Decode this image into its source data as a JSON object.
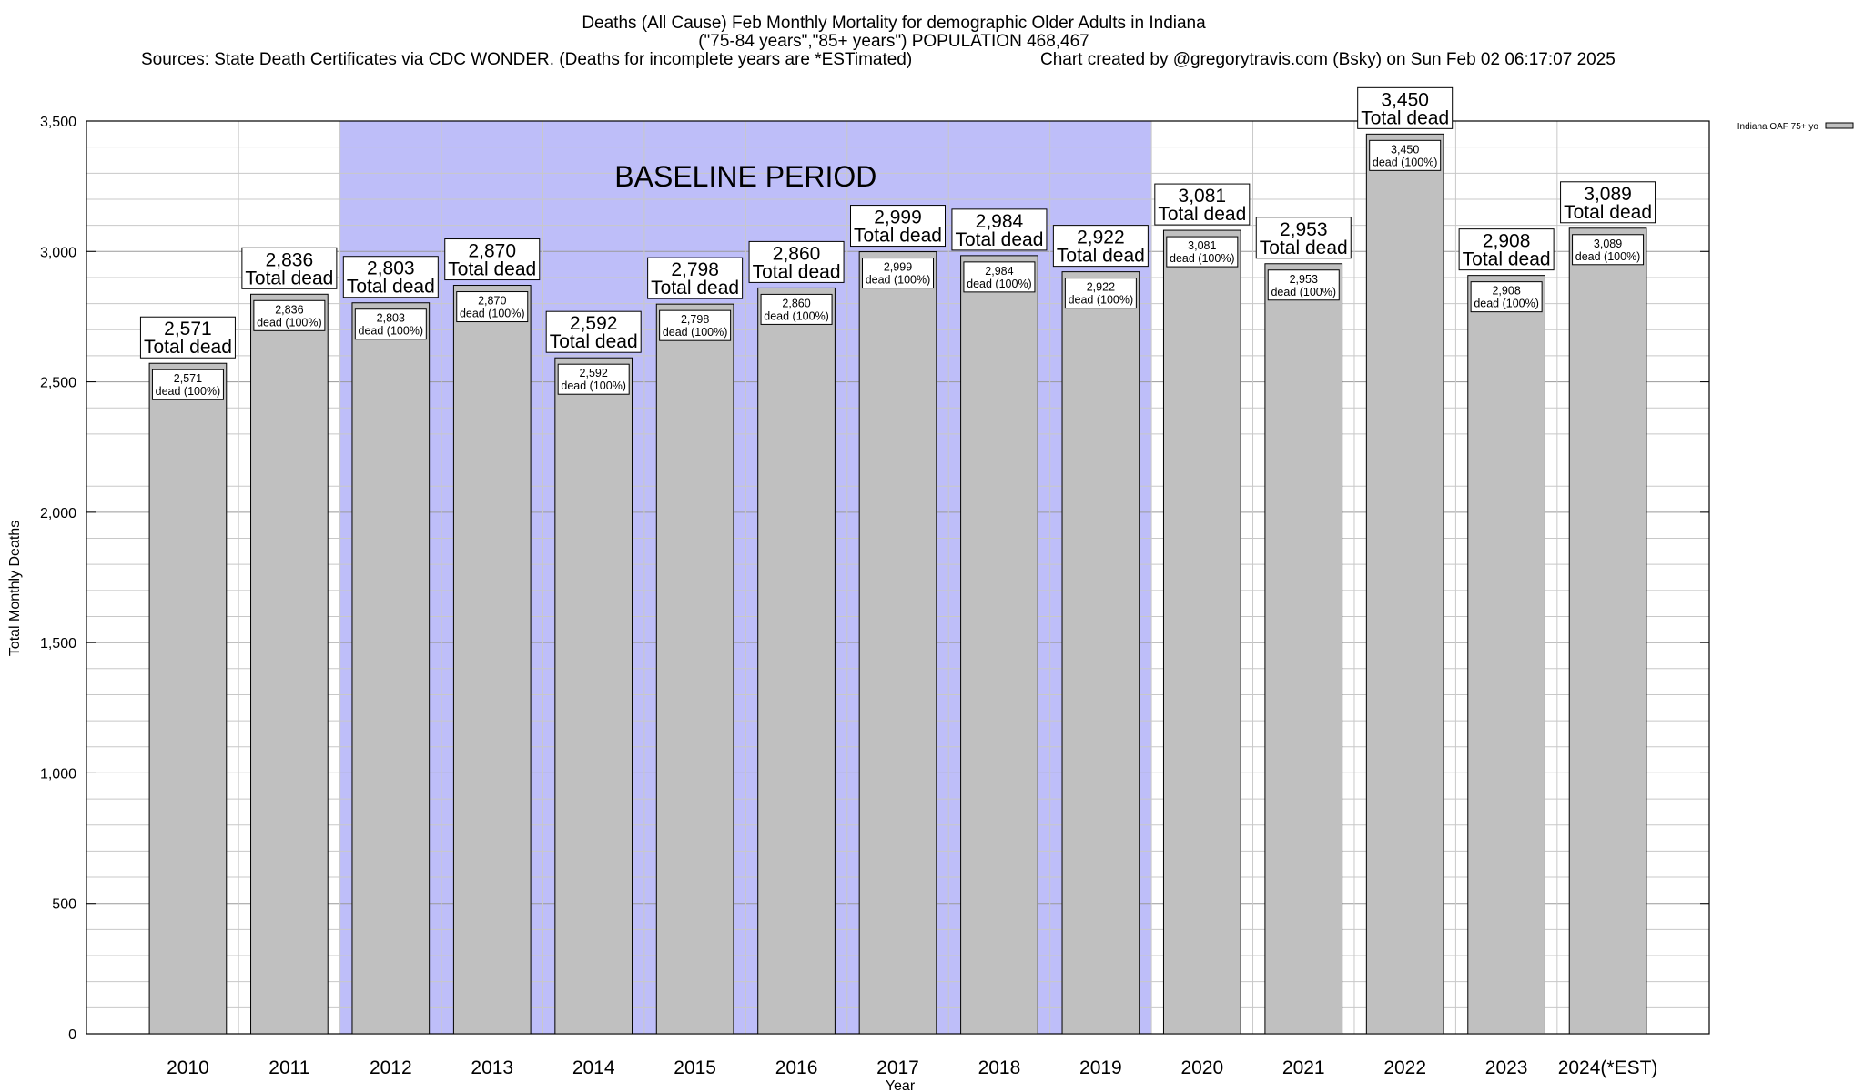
{
  "header": {
    "line1": "Deaths (All Cause) Feb Monthly Mortality for demographic Older Adults in Indiana",
    "line2": "(\"75-84 years\",\"85+ years\") POPULATION 468,467",
    "line3_left": "Sources: State Death Certificates via CDC WONDER. (Deaths for incomplete years are *ESTimated)",
    "line3_right": "Chart created by @gregorytravis.com (Bsky) on Sun Feb 02 06:17:07 2025"
  },
  "chart_data": {
    "type": "bar",
    "xlabel": "Year",
    "ylabel": "Total Monthly Deaths",
    "ylim": [
      0,
      3500
    ],
    "y_ticks": [
      0,
      500,
      1000,
      1500,
      2000,
      2500,
      3000,
      3500
    ],
    "y_tick_labels": [
      "0",
      "500",
      "1,000",
      "1,500",
      "2,000",
      "2,500",
      "3,000",
      "3,500"
    ],
    "grid": true,
    "categories": [
      "2010",
      "2011",
      "2012",
      "2013",
      "2014",
      "2015",
      "2016",
      "2017",
      "2018",
      "2019",
      "2020",
      "2021",
      "2022",
      "2023",
      "2024(*EST)"
    ],
    "series": [
      {
        "name": "Indiana OAF 75+ yo",
        "values": [
          2571,
          2836,
          2803,
          2870,
          2592,
          2798,
          2860,
          2999,
          2984,
          2922,
          3081,
          2953,
          3450,
          2908,
          3089
        ]
      }
    ],
    "value_labels": [
      "2,571",
      "2,836",
      "2,803",
      "2,870",
      "2,592",
      "2,798",
      "2,860",
      "2,999",
      "2,984",
      "2,922",
      "3,081",
      "2,953",
      "3,450",
      "2,908",
      "3,089"
    ],
    "total_label": "Total dead",
    "share_label": "dead (100%)",
    "baseline": {
      "label": "BASELINE PERIOD",
      "from": "2012",
      "to": "2019",
      "color": "#bebef9"
    },
    "legend": {
      "placement": "top-right"
    },
    "bar_color": "#c0c0c0"
  }
}
